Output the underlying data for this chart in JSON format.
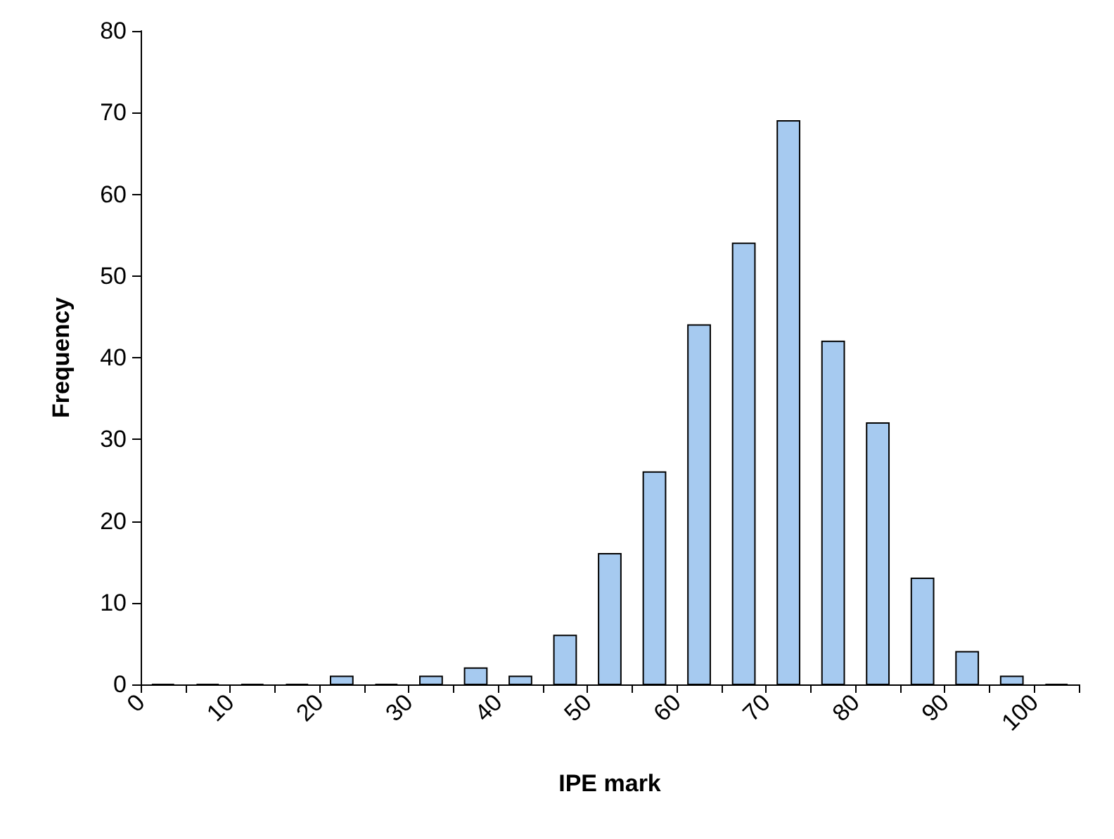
{
  "chart_data": {
    "type": "histogram",
    "xlabel": "IPE mark",
    "ylabel": "Frequency",
    "color": "#a6caf0",
    "bins": [
      0,
      5,
      10,
      15,
      20,
      25,
      30,
      35,
      40,
      45,
      50,
      55,
      60,
      65,
      70,
      75,
      80,
      85,
      90,
      95,
      100,
      105
    ],
    "values": [
      0,
      0,
      0,
      0,
      1,
      0,
      1,
      2,
      1,
      6,
      16,
      26,
      44,
      54,
      69,
      42,
      32,
      13,
      4,
      1,
      0
    ],
    "xlim": [
      0,
      105
    ],
    "xticks": [
      0,
      {
        "value": 5,
        "label": null
      },
      10,
      {
        "value": 15,
        "label": null
      },
      20,
      {
        "value": 25,
        "label": null
      },
      30,
      {
        "value": 35,
        "label": null
      },
      40,
      {
        "value": 45,
        "label": null
      },
      50,
      {
        "value": 55,
        "label": null
      },
      60,
      {
        "value": 65,
        "label": null
      },
      70,
      {
        "value": 75,
        "label": null
      },
      80,
      {
        "value": 85,
        "label": null
      },
      90,
      {
        "value": 95,
        "label": null
      },
      100,
      {
        "value": 105,
        "label": null
      }
    ],
    "ylim": [
      0,
      80
    ],
    "yticks": [
      0,
      10,
      20,
      30,
      40,
      50,
      60,
      70,
      80
    ],
    "grid": false
  }
}
